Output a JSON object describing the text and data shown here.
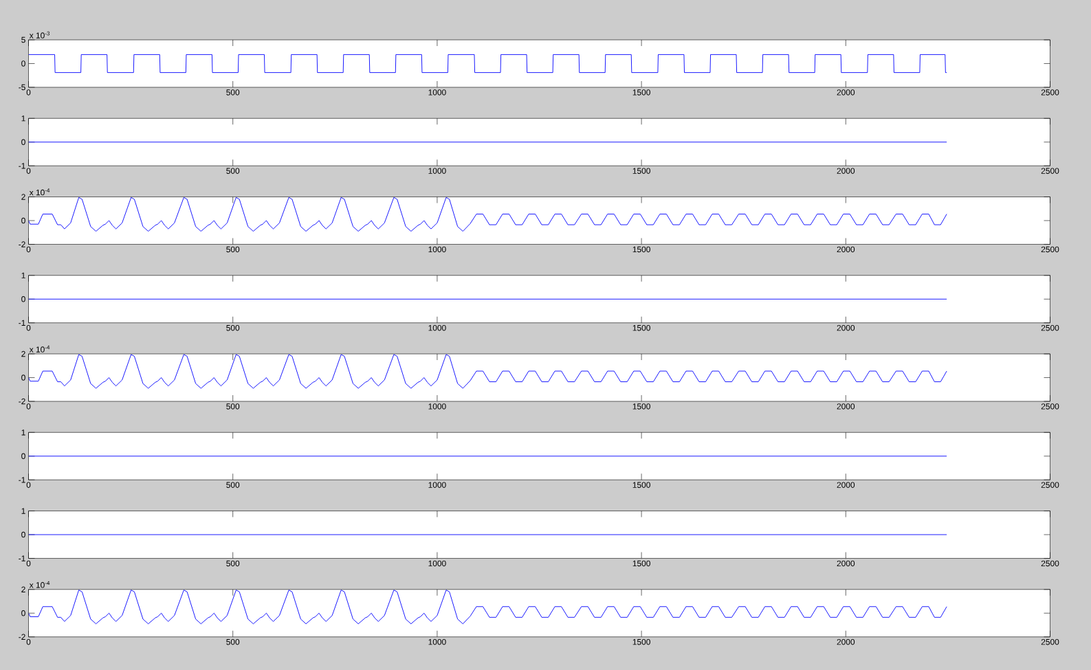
{
  "chart_data": [
    {
      "type": "line",
      "color": "#0000ff",
      "xlim": [
        0,
        2500
      ],
      "xticks": [
        0,
        500,
        1000,
        1500,
        2000,
        2500
      ],
      "ylim": [
        -5,
        5
      ],
      "yticks": [
        -5,
        0,
        5
      ],
      "annotations": [
        "x 10$^{-3}$"
      ],
      "x": [
        0,
        64,
        65,
        128,
        129,
        192,
        193,
        257,
        258,
        321,
        322,
        385,
        386,
        449,
        450,
        513,
        514,
        577,
        578,
        642,
        643,
        706,
        707,
        770,
        771,
        834,
        835,
        898,
        899,
        962,
        963,
        1026,
        1027,
        1091,
        1092,
        1155,
        1156,
        1219,
        1220,
        1283,
        1284,
        1347,
        1348,
        1411,
        1412,
        1475,
        1476,
        1540,
        1541,
        1604,
        1605,
        1668,
        1669,
        1732,
        1733,
        1796,
        1797,
        1860,
        1861,
        1924,
        1925,
        1988,
        1989,
        2053,
        2054,
        2117,
        2118,
        2181,
        2182,
        2243,
        2244,
        2247
      ],
      "values": [
        1.9,
        1.9,
        -1.9,
        -1.9,
        1.9,
        1.9,
        -1.9,
        -1.9,
        1.9,
        1.9,
        -1.9,
        -1.9,
        1.9,
        1.9,
        -1.9,
        -1.9,
        1.9,
        1.9,
        -1.9,
        -1.9,
        1.9,
        1.9,
        -1.9,
        -1.9,
        1.9,
        1.9,
        -1.9,
        -1.9,
        1.9,
        1.9,
        -1.9,
        -1.9,
        1.9,
        1.9,
        -1.9,
        -1.9,
        1.9,
        1.9,
        -1.9,
        -1.9,
        1.9,
        1.9,
        -1.9,
        -1.9,
        1.9,
        1.9,
        -1.9,
        -1.9,
        1.9,
        1.9,
        -1.9,
        -1.9,
        1.9,
        1.9,
        -1.9,
        -1.9,
        1.9,
        1.9,
        -1.9,
        -1.9,
        1.9,
        1.9,
        -1.9,
        -1.9,
        1.9,
        1.9,
        -1.9,
        -1.9,
        1.9,
        1.9,
        -1.9,
        -1.9
      ]
    },
    {
      "type": "line",
      "color": "#0000ff",
      "xlim": [
        0,
        2500
      ],
      "xticks": [
        0,
        500,
        1000,
        1500,
        2000,
        2500
      ],
      "ylim": [
        -1,
        1
      ],
      "yticks": [
        -1,
        0,
        1
      ],
      "x": [
        0,
        2247
      ],
      "values": [
        0,
        0
      ]
    },
    {
      "type": "line",
      "color": "#0000ff",
      "xlim": [
        0,
        2500
      ],
      "xticks": [
        0,
        500,
        1000,
        1500,
        2000,
        2500
      ],
      "ylim": [
        -2,
        2
      ],
      "yticks": [
        -2,
        0,
        2
      ],
      "annotations": [
        "x 10$^{-4}$"
      ],
      "x": [
        0,
        4,
        24,
        35,
        58,
        71,
        79,
        88,
        103,
        123,
        131,
        152,
        165,
        182,
        188,
        197,
        205,
        214,
        229,
        251,
        259,
        280,
        293,
        310,
        316,
        325,
        333,
        342,
        357,
        380,
        388,
        409,
        422,
        439,
        445,
        454,
        462,
        471,
        486,
        508,
        516,
        537,
        550,
        567,
        573,
        582,
        590,
        599,
        614,
        637,
        645,
        666,
        679,
        696,
        702,
        711,
        719,
        728,
        743,
        765,
        773,
        794,
        807,
        824,
        830,
        839,
        847,
        856,
        871,
        894,
        902,
        923,
        936,
        953,
        959,
        968,
        976,
        985,
        1000,
        1022,
        1030,
        1050,
        1063,
        1081,
        1096,
        1112,
        1128,
        1144,
        1160,
        1176,
        1192,
        1208,
        1224,
        1240,
        1256,
        1272,
        1288,
        1304,
        1320,
        1336,
        1353,
        1369,
        1385,
        1401,
        1417,
        1433,
        1449,
        1465,
        1481,
        1497,
        1513,
        1529,
        1545,
        1561,
        1577,
        1593,
        1609,
        1625,
        1641,
        1657,
        1673,
        1689,
        1705,
        1721,
        1738,
        1754,
        1770,
        1786,
        1802,
        1818,
        1834,
        1850,
        1866,
        1882,
        1898,
        1914,
        1930,
        1946,
        1962,
        1978,
        1994,
        2010,
        2026,
        2042,
        2058,
        2074,
        2090,
        2106,
        2123,
        2139,
        2155,
        2171,
        2187,
        2203,
        2217,
        2232,
        2247
      ],
      "values": [
        0,
        -0.3,
        -0.3,
        0.55,
        0.55,
        -0.35,
        -0.35,
        -0.7,
        -0.2,
        1.95,
        1.8,
        -0.5,
        -0.9,
        -0.4,
        -0.3,
        0,
        -0.4,
        -0.7,
        -0.2,
        1.95,
        1.8,
        -0.5,
        -0.9,
        -0.4,
        -0.3,
        0,
        -0.4,
        -0.7,
        -0.2,
        1.95,
        1.8,
        -0.5,
        -0.9,
        -0.4,
        -0.3,
        0,
        -0.4,
        -0.7,
        -0.2,
        1.95,
        1.8,
        -0.5,
        -0.9,
        -0.4,
        -0.3,
        0,
        -0.4,
        -0.7,
        -0.2,
        1.95,
        1.8,
        -0.5,
        -0.9,
        -0.4,
        -0.3,
        0,
        -0.4,
        -0.7,
        -0.2,
        1.95,
        1.8,
        -0.5,
        -0.9,
        -0.4,
        -0.3,
        0,
        -0.4,
        -0.7,
        -0.2,
        1.95,
        1.8,
        -0.5,
        -0.9,
        -0.4,
        -0.3,
        0,
        -0.4,
        -0.7,
        -0.2,
        1.95,
        1.8,
        -0.5,
        -0.9,
        -0.25,
        0.55,
        0.55,
        -0.35,
        -0.35,
        0.55,
        0.55,
        -0.35,
        -0.35,
        0.55,
        0.55,
        -0.35,
        -0.35,
        0.55,
        0.55,
        -0.35,
        -0.35,
        0.55,
        0.55,
        -0.35,
        -0.35,
        0.55,
        0.55,
        -0.35,
        -0.35,
        0.55,
        0.55,
        -0.35,
        -0.35,
        0.55,
        0.55,
        -0.35,
        -0.35,
        0.55,
        0.55,
        -0.35,
        -0.35,
        0.55,
        0.55,
        -0.35,
        -0.35,
        0.55,
        0.55,
        -0.35,
        -0.35,
        0.55,
        0.55,
        -0.35,
        -0.35,
        0.55,
        0.55,
        -0.35,
        -0.35,
        0.55,
        0.55,
        -0.35,
        -0.35,
        0.55,
        0.55,
        -0.35,
        -0.35,
        0.55,
        0.55,
        -0.35,
        -0.35,
        0.55,
        0.55,
        -0.35,
        -0.35,
        0.55,
        0.55,
        -0.35,
        -0.35,
        0.55
      ]
    },
    {
      "type": "line",
      "color": "#0000ff",
      "xlim": [
        0,
        2500
      ],
      "xticks": [
        0,
        500,
        1000,
        1500,
        2000,
        2500
      ],
      "ylim": [
        -1,
        1
      ],
      "yticks": [
        -1,
        0,
        1
      ],
      "x": [
        0,
        2247
      ],
      "values": [
        0,
        0
      ]
    },
    {
      "type": "line",
      "color": "#0000ff",
      "xlim": [
        0,
        2500
      ],
      "xticks": [
        0,
        500,
        1000,
        1500,
        2000,
        2500
      ],
      "ylim": [
        -2,
        2
      ],
      "yticks": [
        -2,
        0,
        2
      ],
      "annotations": [
        "x 10$^{-4}$"
      ],
      "x": [
        0,
        4,
        24,
        35,
        58,
        71,
        79,
        88,
        103,
        123,
        131,
        152,
        165,
        182,
        188,
        197,
        205,
        214,
        229,
        251,
        259,
        280,
        293,
        310,
        316,
        325,
        333,
        342,
        357,
        380,
        388,
        409,
        422,
        439,
        445,
        454,
        462,
        471,
        486,
        508,
        516,
        537,
        550,
        567,
        573,
        582,
        590,
        599,
        614,
        637,
        645,
        666,
        679,
        696,
        702,
        711,
        719,
        728,
        743,
        765,
        773,
        794,
        807,
        824,
        830,
        839,
        847,
        856,
        871,
        894,
        902,
        923,
        936,
        953,
        959,
        968,
        976,
        985,
        1000,
        1022,
        1030,
        1050,
        1063,
        1081,
        1096,
        1112,
        1128,
        1144,
        1160,
        1176,
        1192,
        1208,
        1224,
        1240,
        1256,
        1272,
        1288,
        1304,
        1320,
        1336,
        1353,
        1369,
        1385,
        1401,
        1417,
        1433,
        1449,
        1465,
        1481,
        1497,
        1513,
        1529,
        1545,
        1561,
        1577,
        1593,
        1609,
        1625,
        1641,
        1657,
        1673,
        1689,
        1705,
        1721,
        1738,
        1754,
        1770,
        1786,
        1802,
        1818,
        1834,
        1850,
        1866,
        1882,
        1898,
        1914,
        1930,
        1946,
        1962,
        1978,
        1994,
        2010,
        2026,
        2042,
        2058,
        2074,
        2090,
        2106,
        2123,
        2139,
        2155,
        2171,
        2187,
        2203,
        2217,
        2232,
        2247
      ],
      "values": [
        0,
        -0.3,
        -0.3,
        0.55,
        0.55,
        -0.35,
        -0.35,
        -0.7,
        -0.2,
        1.95,
        1.8,
        -0.5,
        -0.9,
        -0.4,
        -0.3,
        0,
        -0.4,
        -0.7,
        -0.2,
        1.95,
        1.8,
        -0.5,
        -0.9,
        -0.4,
        -0.3,
        0,
        -0.4,
        -0.7,
        -0.2,
        1.95,
        1.8,
        -0.5,
        -0.9,
        -0.4,
        -0.3,
        0,
        -0.4,
        -0.7,
        -0.2,
        1.95,
        1.8,
        -0.5,
        -0.9,
        -0.4,
        -0.3,
        0,
        -0.4,
        -0.7,
        -0.2,
        1.95,
        1.8,
        -0.5,
        -0.9,
        -0.4,
        -0.3,
        0,
        -0.4,
        -0.7,
        -0.2,
        1.95,
        1.8,
        -0.5,
        -0.9,
        -0.4,
        -0.3,
        0,
        -0.4,
        -0.7,
        -0.2,
        1.95,
        1.8,
        -0.5,
        -0.9,
        -0.4,
        -0.3,
        0,
        -0.4,
        -0.7,
        -0.2,
        1.95,
        1.8,
        -0.5,
        -0.9,
        -0.25,
        0.55,
        0.55,
        -0.35,
        -0.35,
        0.55,
        0.55,
        -0.35,
        -0.35,
        0.55,
        0.55,
        -0.35,
        -0.35,
        0.55,
        0.55,
        -0.35,
        -0.35,
        0.55,
        0.55,
        -0.35,
        -0.35,
        0.55,
        0.55,
        -0.35,
        -0.35,
        0.55,
        0.55,
        -0.35,
        -0.35,
        0.55,
        0.55,
        -0.35,
        -0.35,
        0.55,
        0.55,
        -0.35,
        -0.35,
        0.55,
        0.55,
        -0.35,
        -0.35,
        0.55,
        0.55,
        -0.35,
        -0.35,
        0.55,
        0.55,
        -0.35,
        -0.35,
        0.55,
        0.55,
        -0.35,
        -0.35,
        0.55,
        0.55,
        -0.35,
        -0.35,
        0.55,
        0.55,
        -0.35,
        -0.35,
        0.55,
        0.55,
        -0.35,
        -0.35,
        0.55,
        0.55,
        -0.35,
        -0.35,
        0.55,
        0.55,
        -0.35,
        -0.35,
        0.55
      ]
    },
    {
      "type": "line",
      "color": "#0000ff",
      "xlim": [
        0,
        2500
      ],
      "xticks": [
        0,
        500,
        1000,
        1500,
        2000,
        2500
      ],
      "ylim": [
        -1,
        1
      ],
      "yticks": [
        -1,
        0,
        1
      ],
      "x": [
        0,
        2247
      ],
      "values": [
        0,
        0
      ]
    },
    {
      "type": "line",
      "color": "#0000ff",
      "xlim": [
        0,
        2500
      ],
      "xticks": [
        0,
        500,
        1000,
        1500,
        2000,
        2500
      ],
      "ylim": [
        -1,
        1
      ],
      "yticks": [
        -1,
        0,
        1
      ],
      "x": [
        0,
        2247
      ],
      "values": [
        0,
        0
      ]
    },
    {
      "type": "line",
      "color": "#0000ff",
      "xlim": [
        0,
        2500
      ],
      "xticks": [
        0,
        500,
        1000,
        1500,
        2000,
        2500
      ],
      "ylim": [
        -2,
        2
      ],
      "yticks": [
        -2,
        0,
        2
      ],
      "annotations": [
        "x 10$^{-4}$"
      ],
      "x": [
        0,
        4,
        24,
        35,
        58,
        71,
        79,
        88,
        103,
        123,
        131,
        152,
        165,
        182,
        188,
        197,
        205,
        214,
        229,
        251,
        259,
        280,
        293,
        310,
        316,
        325,
        333,
        342,
        357,
        380,
        388,
        409,
        422,
        439,
        445,
        454,
        462,
        471,
        486,
        508,
        516,
        537,
        550,
        567,
        573,
        582,
        590,
        599,
        614,
        637,
        645,
        666,
        679,
        696,
        702,
        711,
        719,
        728,
        743,
        765,
        773,
        794,
        807,
        824,
        830,
        839,
        847,
        856,
        871,
        894,
        902,
        923,
        936,
        953,
        959,
        968,
        976,
        985,
        1000,
        1022,
        1030,
        1050,
        1063,
        1081,
        1096,
        1112,
        1128,
        1144,
        1160,
        1176,
        1192,
        1208,
        1224,
        1240,
        1256,
        1272,
        1288,
        1304,
        1320,
        1336,
        1353,
        1369,
        1385,
        1401,
        1417,
        1433,
        1449,
        1465,
        1481,
        1497,
        1513,
        1529,
        1545,
        1561,
        1577,
        1593,
        1609,
        1625,
        1641,
        1657,
        1673,
        1689,
        1705,
        1721,
        1738,
        1754,
        1770,
        1786,
        1802,
        1818,
        1834,
        1850,
        1866,
        1882,
        1898,
        1914,
        1930,
        1946,
        1962,
        1978,
        1994,
        2010,
        2026,
        2042,
        2058,
        2074,
        2090,
        2106,
        2123,
        2139,
        2155,
        2171,
        2187,
        2203,
        2217,
        2232,
        2247
      ],
      "values": [
        0,
        -0.3,
        -0.3,
        0.55,
        0.55,
        -0.35,
        -0.35,
        -0.7,
        -0.2,
        1.95,
        1.8,
        -0.5,
        -0.9,
        -0.4,
        -0.3,
        0,
        -0.4,
        -0.7,
        -0.2,
        1.95,
        1.8,
        -0.5,
        -0.9,
        -0.4,
        -0.3,
        0,
        -0.4,
        -0.7,
        -0.2,
        1.95,
        1.8,
        -0.5,
        -0.9,
        -0.4,
        -0.3,
        0,
        -0.4,
        -0.7,
        -0.2,
        1.95,
        1.8,
        -0.5,
        -0.9,
        -0.4,
        -0.3,
        0,
        -0.4,
        -0.7,
        -0.2,
        1.95,
        1.8,
        -0.5,
        -0.9,
        -0.4,
        -0.3,
        0,
        -0.4,
        -0.7,
        -0.2,
        1.95,
        1.8,
        -0.5,
        -0.9,
        -0.4,
        -0.3,
        0,
        -0.4,
        -0.7,
        -0.2,
        1.95,
        1.8,
        -0.5,
        -0.9,
        -0.4,
        -0.3,
        0,
        -0.4,
        -0.7,
        -0.2,
        1.95,
        1.8,
        -0.5,
        -0.9,
        -0.25,
        0.55,
        0.55,
        -0.35,
        -0.35,
        0.55,
        0.55,
        -0.35,
        -0.35,
        0.55,
        0.55,
        -0.35,
        -0.35,
        0.55,
        0.55,
        -0.35,
        -0.35,
        0.55,
        0.55,
        -0.35,
        -0.35,
        0.55,
        0.55,
        -0.35,
        -0.35,
        0.55,
        0.55,
        -0.35,
        -0.35,
        0.55,
        0.55,
        -0.35,
        -0.35,
        0.55,
        0.55,
        -0.35,
        -0.35,
        0.55,
        0.55,
        -0.35,
        -0.35,
        0.55,
        0.55,
        -0.35,
        -0.35,
        0.55,
        0.55,
        -0.35,
        -0.35,
        0.55,
        0.55,
        -0.35,
        -0.35,
        0.55,
        0.55,
        -0.35,
        -0.35,
        0.55,
        0.55,
        -0.35,
        -0.35,
        0.55,
        0.55,
        -0.35,
        -0.35,
        0.55,
        0.55,
        -0.35,
        -0.35,
        0.55,
        0.55,
        -0.35,
        -0.35,
        0.55
      ]
    }
  ]
}
